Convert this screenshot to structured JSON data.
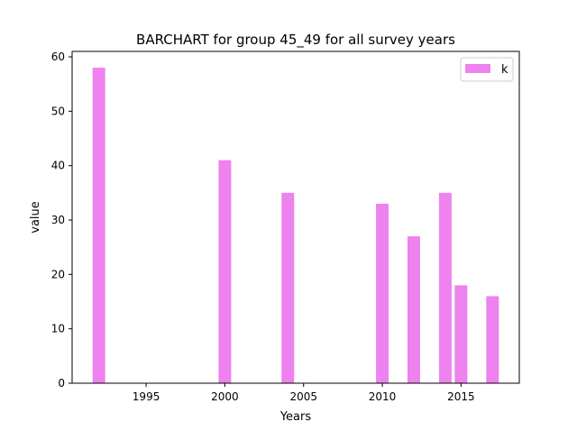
{
  "chart_data": {
    "type": "bar",
    "title": "BARCHART for group 45_49 for all survey years",
    "xlabel": "Years",
    "ylabel": "value",
    "x": [
      1992,
      2000,
      2004,
      2010,
      2012,
      2014,
      2015,
      2017
    ],
    "series": [
      {
        "name": "k",
        "values": [
          58,
          41,
          35,
          33,
          27,
          35,
          18,
          16
        ],
        "color": "#ee82ee"
      }
    ],
    "xlim": [
      1990.3,
      2018.7
    ],
    "ylim": [
      0,
      61
    ],
    "xticks": [
      1995,
      2000,
      2005,
      2010,
      2015
    ],
    "yticks": [
      0,
      10,
      20,
      30,
      40,
      50,
      60
    ],
    "bar_width_years": 0.8,
    "grid": false,
    "legend_position": "top-right"
  }
}
